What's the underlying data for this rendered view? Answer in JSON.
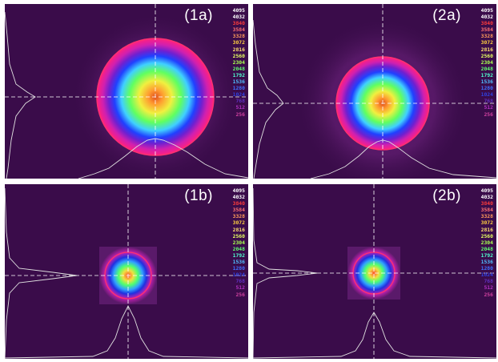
{
  "figure": {
    "panels": [
      {
        "label": "(1a)",
        "spot": "large"
      },
      {
        "label": "(2a)",
        "spot": "large"
      },
      {
        "label": "(1b)",
        "spot": "small"
      },
      {
        "label": "(2b)",
        "spot": "small"
      }
    ],
    "scale": {
      "labels": [
        "4095",
        "4032",
        "3840",
        "3584",
        "3328",
        "3072",
        "2816",
        "2560",
        "2304",
        "2048",
        "1792",
        "1536",
        "1280",
        "1024",
        "768",
        "512",
        "256"
      ],
      "colors": [
        "#ffffff",
        "#ffffff",
        "#ff3c3c",
        "#ff7070",
        "#ff9a5a",
        "#ffd040",
        "#ffe070",
        "#e6ff60",
        "#a8ff50",
        "#60ff70",
        "#50ffd0",
        "#50c0ff",
        "#4070ff",
        "#3040e0",
        "#6030c0",
        "#b030c0",
        "#d040a0"
      ]
    },
    "background_color": "#3a0c4a"
  }
}
